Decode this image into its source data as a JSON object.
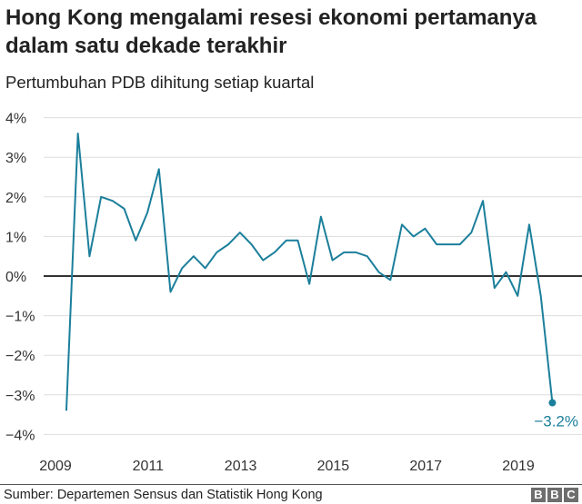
{
  "title": "Hong Kong mengalami resesi ekonomi pertamanya dalam satu dekade terakhir",
  "subtitle": "Pertumbuhan PDB dihitung setiap kuartal",
  "source": "Sumber: Departemen Sensus dan Statistik Hong Kong",
  "logo": [
    "B",
    "B",
    "C"
  ],
  "colors": {
    "line": "#1b7f9b",
    "grid": "#dddddd",
    "zero": "#333333",
    "label": "#1b7f9b"
  },
  "chart_data": {
    "type": "line",
    "title": "Hong Kong mengalami resesi ekonomi pertamanya dalam satu dekade terakhir",
    "subtitle": "Pertumbuhan PDB dihitung setiap kuartal",
    "xlabel": "",
    "ylabel": "",
    "start": "2009 Q1",
    "frequency": "quarterly",
    "x_ticks": [
      2009,
      2011,
      2013,
      2015,
      2017,
      2019
    ],
    "x_tick_labels": [
      "2009",
      "2011",
      "2013",
      "2015",
      "2017",
      "2019"
    ],
    "y_ticks": [
      4,
      3,
      2,
      1,
      0,
      -1,
      -2,
      -3,
      -4
    ],
    "y_tick_labels": [
      "4%",
      "3%",
      "2%",
      "1%",
      "0%",
      "−1%",
      "−2%",
      "−3%",
      "−4%"
    ],
    "ylim": [
      -4,
      4
    ],
    "grid": true,
    "series": [
      {
        "name": "Pertumbuhan PDB",
        "values": [
          -3.4,
          3.6,
          0.5,
          2.0,
          1.9,
          1.7,
          0.9,
          1.6,
          2.7,
          -0.4,
          0.2,
          0.5,
          0.2,
          0.6,
          0.8,
          1.1,
          0.8,
          0.4,
          0.6,
          0.9,
          0.9,
          -0.2,
          1.5,
          0.4,
          0.6,
          0.6,
          0.5,
          0.1,
          -0.1,
          1.3,
          1.0,
          1.2,
          0.8,
          0.8,
          0.8,
          1.1,
          1.9,
          -0.3,
          0.1,
          -0.5,
          1.3,
          -0.5,
          -3.2
        ]
      }
    ],
    "annotations": [
      {
        "text": "−3.2%",
        "target": "last point"
      }
    ]
  }
}
